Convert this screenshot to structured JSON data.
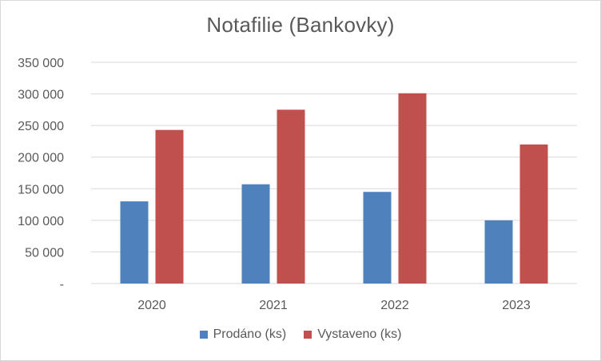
{
  "chart_data": {
    "type": "bar",
    "title": "Notafilie (Bankovky)",
    "categories": [
      "2020",
      "2021",
      "2022",
      "2023"
    ],
    "series": [
      {
        "name": "Prodáno (ks)",
        "color": "#4f81bd",
        "values": [
          130000,
          157000,
          145000,
          100000
        ]
      },
      {
        "name": "Vystaveno (ks)",
        "color": "#c0504d",
        "values": [
          243000,
          275000,
          301000,
          220000
        ]
      }
    ],
    "ylim": [
      0,
      350000
    ],
    "yticks": [
      {
        "value": 0,
        "label": "-"
      },
      {
        "value": 50000,
        "label": "50 000"
      },
      {
        "value": 100000,
        "label": "100 000"
      },
      {
        "value": 150000,
        "label": "150 000"
      },
      {
        "value": 200000,
        "label": "200 000"
      },
      {
        "value": 250000,
        "label": "250 000"
      },
      {
        "value": 300000,
        "label": "300 000"
      },
      {
        "value": 350000,
        "label": "350 000"
      }
    ],
    "grid": true,
    "legend_position": "bottom"
  }
}
